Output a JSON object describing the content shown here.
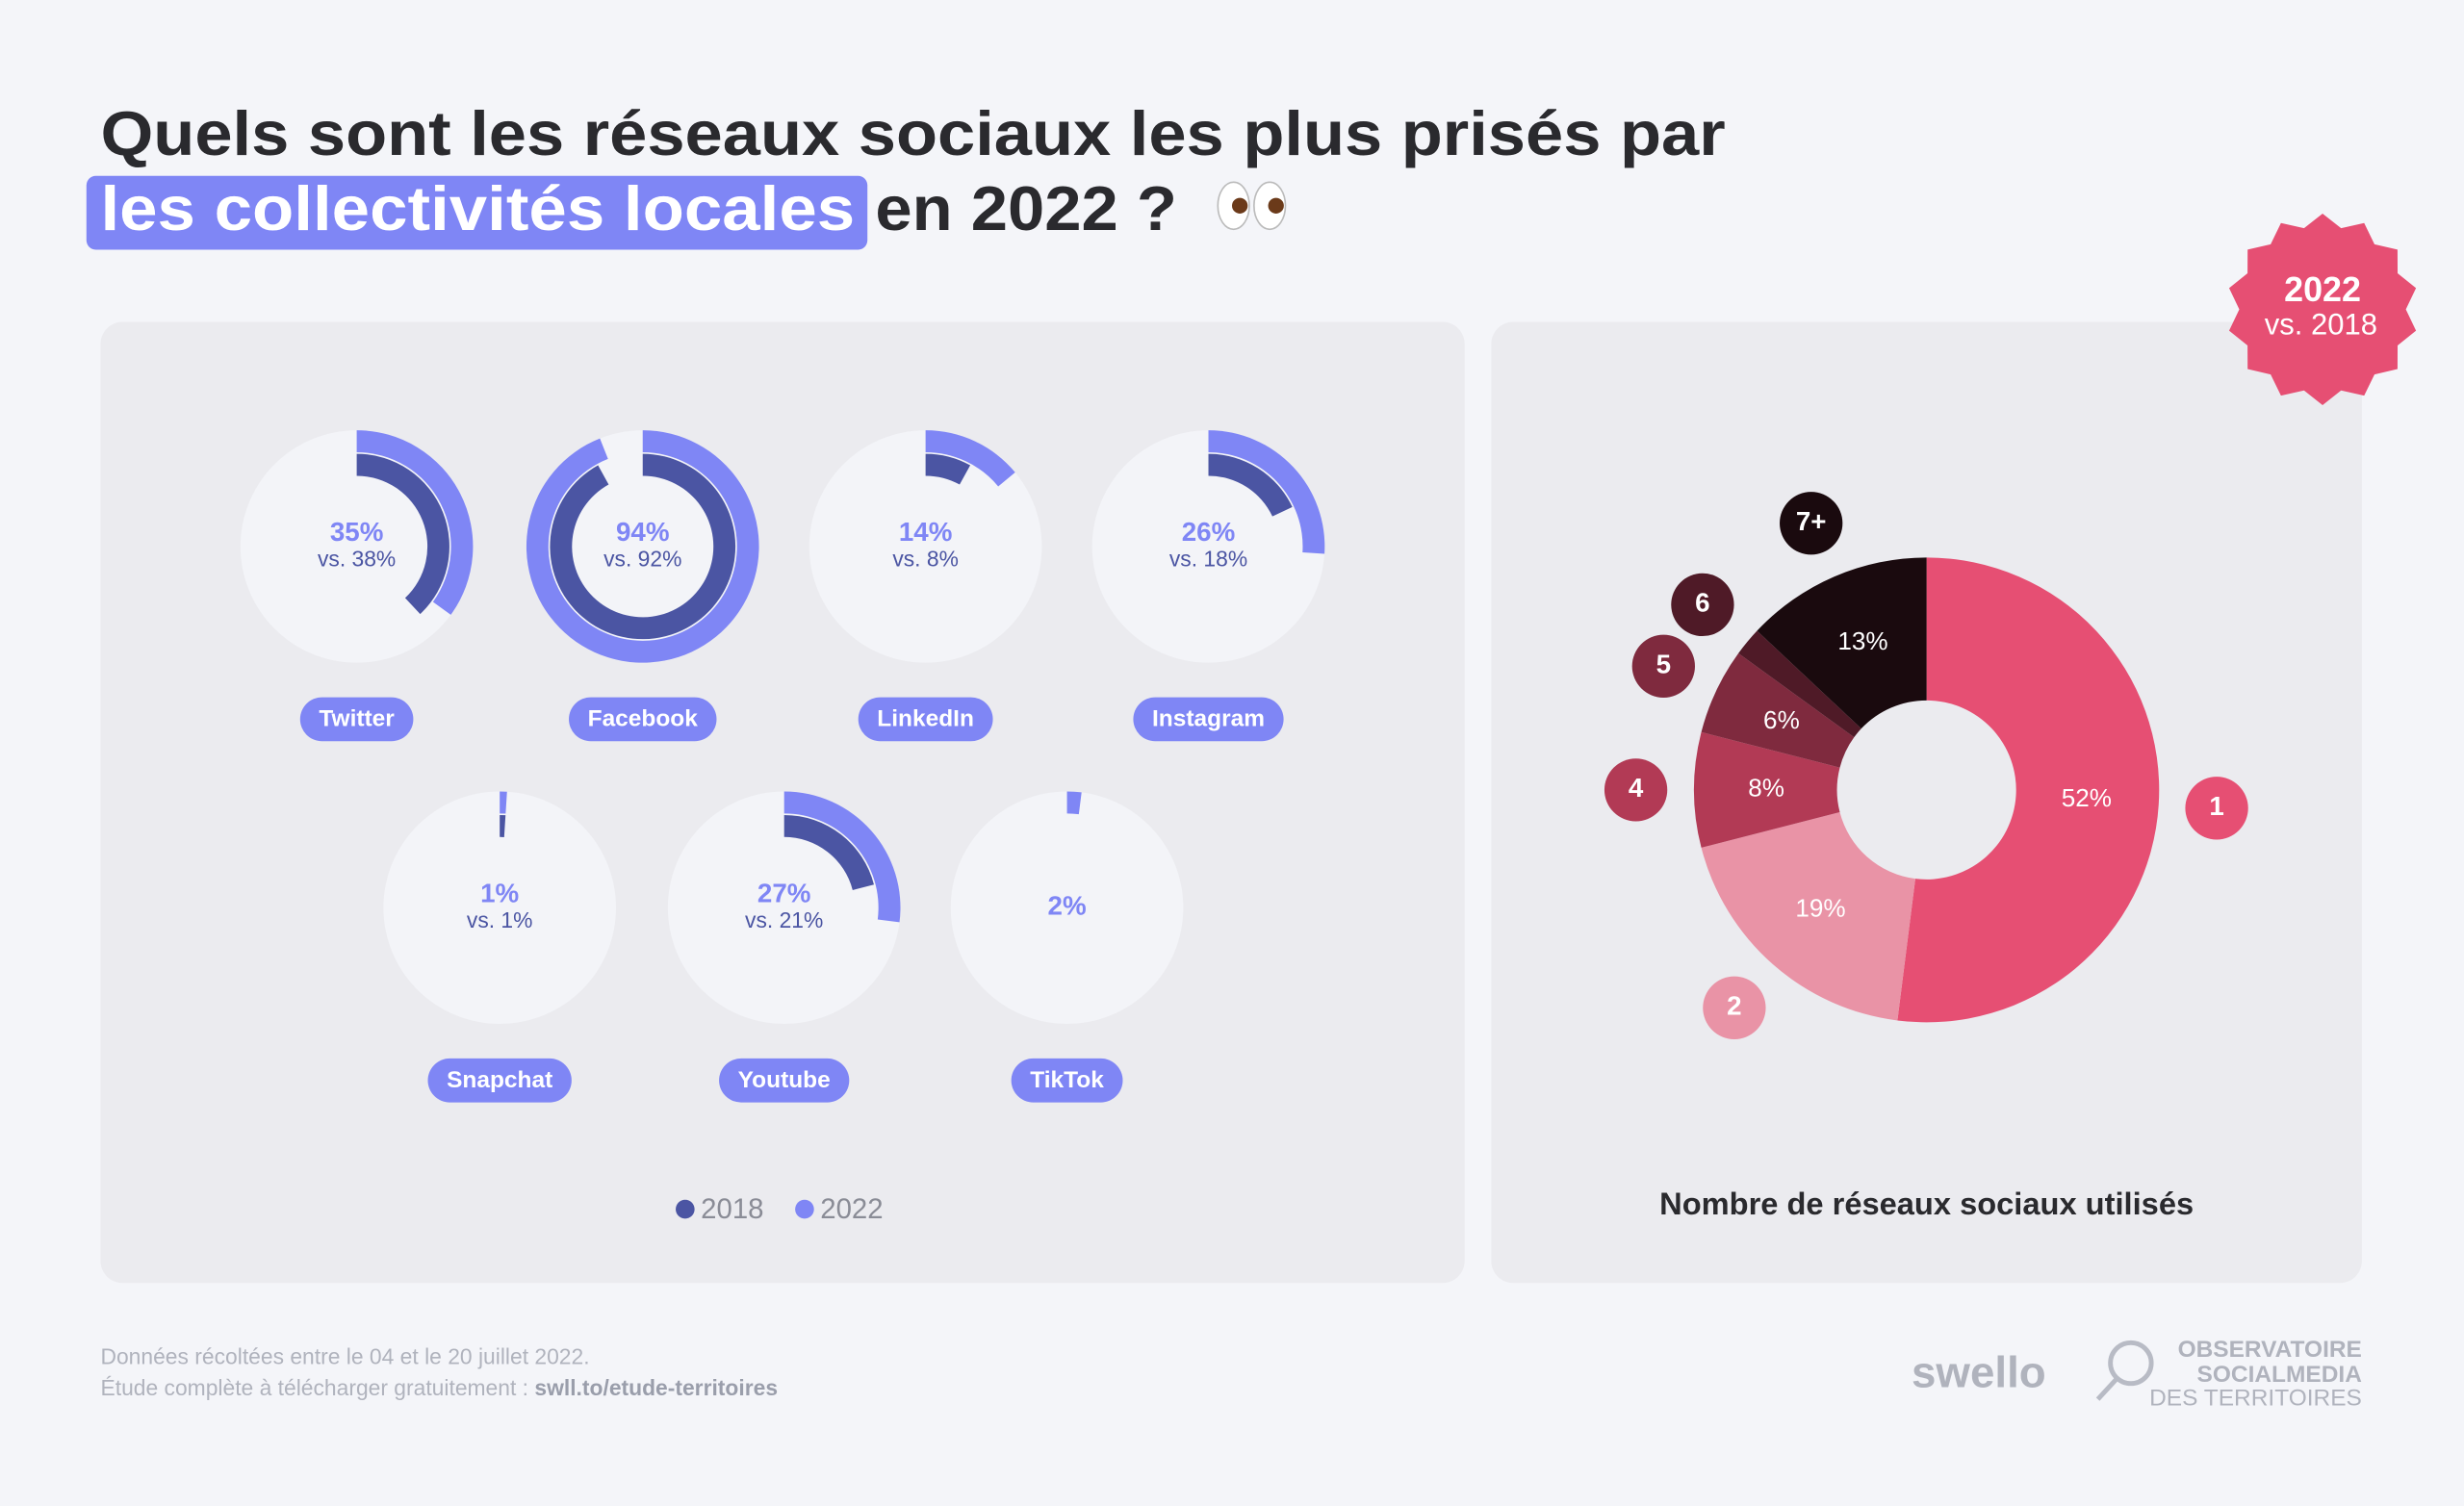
{
  "header": {
    "title": "Quels sont les réseaux sociaux les plus prisés par",
    "highlight": "les collectivités locales",
    "title_end": "en 2022 ?"
  },
  "badge": {
    "year": "2022",
    "comparison": "vs. 2018"
  },
  "chart_data": [
    {
      "type": "radial",
      "categories": [
        "Twitter",
        "Facebook",
        "LinkedIn",
        "Instagram",
        "Snapchat",
        "Youtube",
        "TikTok"
      ],
      "series": [
        {
          "name": "2018",
          "color": "#4b55a3",
          "values": [
            38,
            92,
            8,
            18,
            1,
            21,
            null
          ],
          "value_labels": [
            "vs. 38%",
            "vs. 92%",
            "vs. 8%",
            "vs. 18%",
            "vs. 1%",
            "vs. 21%",
            null
          ]
        },
        {
          "name": "2022",
          "color": "#7f86f5",
          "values": [
            35,
            94,
            14,
            26,
            1,
            27,
            2
          ],
          "value_labels": [
            "35%",
            "94%",
            "14%",
            "26%",
            "1%",
            "27%",
            "2%"
          ]
        }
      ]
    },
    {
      "type": "donut",
      "title": "Nombre de réseaux sociaux utilisés",
      "categories": [
        "1",
        "2",
        "4",
        "5",
        "6",
        "7+"
      ],
      "values": [
        52,
        19,
        8,
        6,
        2,
        13
      ],
      "value_labels": [
        "52%",
        "19%",
        "8%",
        "6%",
        null,
        "13%"
      ],
      "colors": [
        "#e64f73",
        "#e993a6",
        "#b23a55",
        "#7f2a3e",
        "#4f1a27",
        "#1a0a0e"
      ]
    }
  ],
  "footer": {
    "note": "Données récoltées entre le 04 et le 20 juillet 2022.",
    "download": "Étude complète à télécharger gratuitement : ",
    "link": "swll.to/etude-territoires",
    "brand": "swello",
    "partner_line1": "OBSERVATOIRE",
    "partner_line2": "SOCIALMEDIA",
    "partner_line3": "DES TERRITOIRES"
  }
}
